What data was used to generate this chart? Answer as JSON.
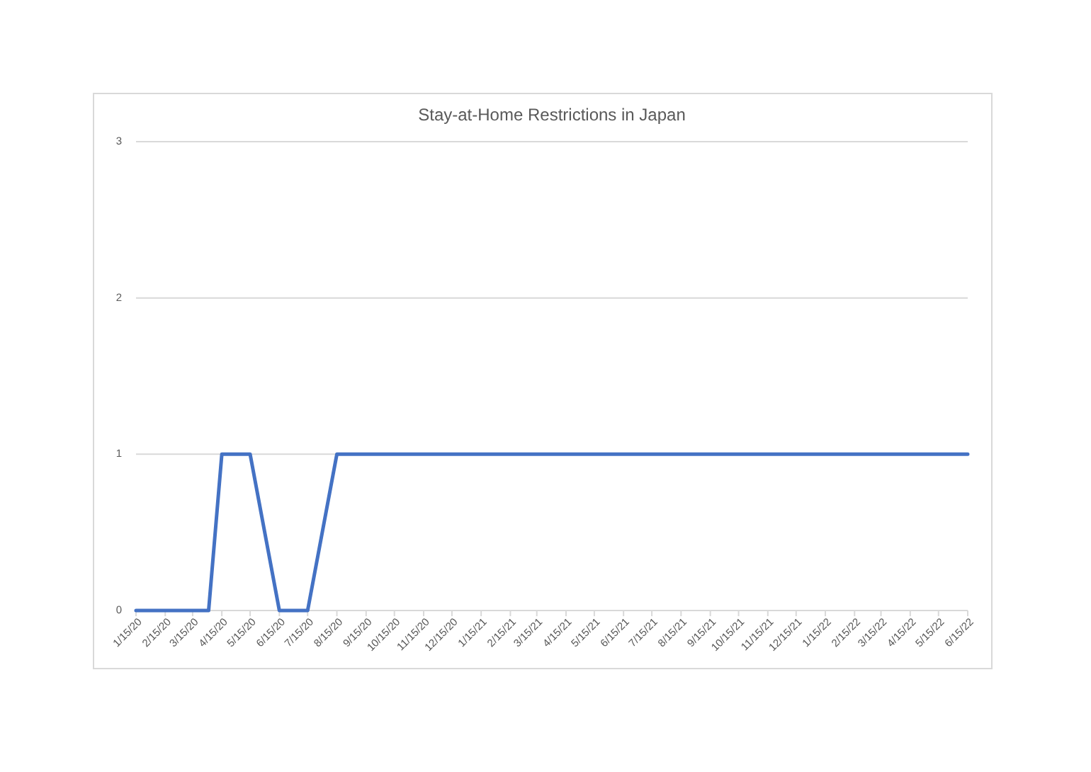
{
  "chart_data": {
    "type": "line",
    "title": "Stay-at-Home Restrictions in Japan",
    "x": [
      "2020-01-15",
      "2020-02-15",
      "2020-03-15",
      "2020-04-01",
      "2020-04-15",
      "2020-05-15",
      "2020-06-15",
      "2020-07-15",
      "2020-08-15",
      "2020-09-15",
      "2020-10-15",
      "2020-11-15",
      "2020-12-15",
      "2021-01-15",
      "2021-02-15",
      "2021-03-15",
      "2021-04-15",
      "2021-05-15",
      "2021-06-15",
      "2021-07-15",
      "2021-08-15",
      "2021-09-15",
      "2021-10-15",
      "2021-11-15",
      "2021-12-15",
      "2022-01-15",
      "2022-02-15",
      "2022-03-15",
      "2022-04-15",
      "2022-05-15",
      "2022-06-15"
    ],
    "series": [
      {
        "color": "#4472c4",
        "values": [
          0,
          0,
          0,
          0,
          1,
          1,
          0,
          0,
          1,
          1,
          1,
          1,
          1,
          1,
          1,
          1,
          1,
          1,
          1,
          1,
          1,
          1,
          1,
          1,
          1,
          1,
          1,
          1,
          1,
          1,
          1
        ]
      }
    ],
    "xlim": [
      "2020-01-15",
      "2022-06-15"
    ],
    "xticks": [
      {
        "value": "2020-01-15",
        "label": "1/15/20"
      },
      {
        "value": "2020-02-15",
        "label": "2/15/20"
      },
      {
        "value": "2020-03-15",
        "label": "3/15/20"
      },
      {
        "value": "2020-04-15",
        "label": "4/15/20"
      },
      {
        "value": "2020-05-15",
        "label": "5/15/20"
      },
      {
        "value": "2020-06-15",
        "label": "6/15/20"
      },
      {
        "value": "2020-07-15",
        "label": "7/15/20"
      },
      {
        "value": "2020-08-15",
        "label": "8/15/20"
      },
      {
        "value": "2020-09-15",
        "label": "9/15/20"
      },
      {
        "value": "2020-10-15",
        "label": "10/15/20"
      },
      {
        "value": "2020-11-15",
        "label": "11/15/20"
      },
      {
        "value": "2020-12-15",
        "label": "12/15/20"
      },
      {
        "value": "2021-01-15",
        "label": "1/15/21"
      },
      {
        "value": "2021-02-15",
        "label": "2/15/21"
      },
      {
        "value": "2021-03-15",
        "label": "3/15/21"
      },
      {
        "value": "2021-04-15",
        "label": "4/15/21"
      },
      {
        "value": "2021-05-15",
        "label": "5/15/21"
      },
      {
        "value": "2021-06-15",
        "label": "6/15/21"
      },
      {
        "value": "2021-07-15",
        "label": "7/15/21"
      },
      {
        "value": "2021-08-15",
        "label": "8/15/21"
      },
      {
        "value": "2021-09-15",
        "label": "9/15/21"
      },
      {
        "value": "2021-10-15",
        "label": "10/15/21"
      },
      {
        "value": "2021-11-15",
        "label": "11/15/21"
      },
      {
        "value": "2021-12-15",
        "label": "12/15/21"
      },
      {
        "value": "2022-01-15",
        "label": "1/15/22"
      },
      {
        "value": "2022-02-15",
        "label": "2/15/22"
      },
      {
        "value": "2022-03-15",
        "label": "3/15/22"
      },
      {
        "value": "2022-04-15",
        "label": "4/15/22"
      },
      {
        "value": "2022-05-15",
        "label": "5/15/22"
      },
      {
        "value": "2022-06-15",
        "label": "6/15/22"
      }
    ],
    "ylim": [
      0,
      3
    ],
    "yticks": [
      0,
      1,
      2,
      3
    ],
    "grid": "y",
    "marker": "none",
    "line_style": "solid"
  }
}
